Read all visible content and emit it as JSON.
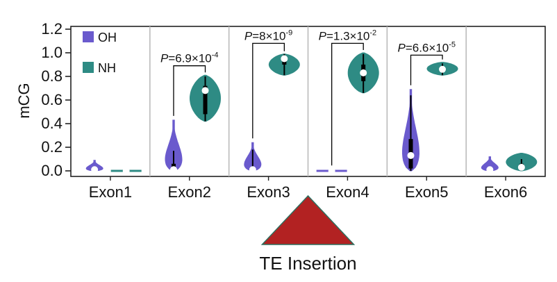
{
  "chart_data": {
    "type": "violin",
    "ylabel": "mCG",
    "ylim": [
      -0.02,
      1.2
    ],
    "yticks": [
      "0.0",
      "0.2",
      "0.4",
      "0.6",
      "0.8",
      "1.0",
      "1.2"
    ],
    "ytick_values": [
      0.0,
      0.2,
      0.4,
      0.6,
      0.8,
      1.0,
      1.2
    ],
    "categories": [
      "Exon1",
      "Exon2",
      "Exon3",
      "Exon4",
      "Exon5",
      "Exon6"
    ],
    "legend": [
      {
        "name": "OH",
        "color": "#6a5acd"
      },
      {
        "name": "NH",
        "color": "#2e8b84"
      }
    ],
    "legend_position": "top-left",
    "series": [
      {
        "name": "OH",
        "color": "#6a5acd",
        "violins": [
          {
            "category": "Exon1",
            "min": 0.0,
            "max": 0.09,
            "median": 0.01
          },
          {
            "category": "Exon2",
            "min": 0.0,
            "max": 0.43,
            "median": 0.01,
            "q1": 0.0,
            "q3": 0.06,
            "whisker_hi": 0.17
          },
          {
            "category": "Exon3",
            "min": 0.0,
            "max": 0.24,
            "median": 0.01,
            "q1": 0.0,
            "q3": 0.03,
            "whisker_hi": 0.18
          },
          {
            "category": "Exon4",
            "min": 0.0,
            "max": 0.01,
            "median": 0.0
          },
          {
            "category": "Exon5",
            "min": 0.0,
            "max": 0.69,
            "median": 0.13,
            "q1": 0.02,
            "q3": 0.27,
            "whisker_hi": 0.64
          },
          {
            "category": "Exon6",
            "min": 0.0,
            "max": 0.12,
            "median": 0.01
          }
        ]
      },
      {
        "name": "NH",
        "color": "#2e8b84",
        "violins": [
          {
            "category": "Exon1",
            "min": 0.0,
            "max": 0.01,
            "median": 0.0
          },
          {
            "category": "Exon2",
            "min": 0.42,
            "max": 0.81,
            "median": 0.68,
            "q1": 0.48,
            "q3": 0.72,
            "whisker_hi": 0.8
          },
          {
            "category": "Exon3",
            "min": 0.81,
            "max": 0.99,
            "median": 0.95,
            "q1": 0.9,
            "q3": 0.97,
            "whisker_hi": 0.99
          },
          {
            "category": "Exon4",
            "min": 0.66,
            "max": 1.0,
            "median": 0.83,
            "q1": 0.76,
            "q3": 0.9,
            "whisker_hi": 0.99
          },
          {
            "category": "Exon5",
            "min": 0.81,
            "max": 0.92,
            "median": 0.86,
            "q1": 0.84,
            "q3": 0.88,
            "whisker_hi": 0.91
          },
          {
            "category": "Exon6",
            "min": 0.0,
            "max": 0.15,
            "median": 0.03,
            "q1": 0.01,
            "q3": 0.06,
            "whisker_hi": 0.1
          }
        ]
      }
    ],
    "comparisons": [
      {
        "category": "Exon2",
        "p_base": "6.9×10",
        "p_exp": "-4",
        "bracket_y": 0.89
      },
      {
        "category": "Exon3",
        "p_base": "8×10",
        "p_exp": "-9",
        "bracket_y": 1.08
      },
      {
        "category": "Exon4",
        "p_base": "1.3×10",
        "p_exp": "-2",
        "bracket_y": 1.08
      },
      {
        "category": "Exon5",
        "p_base": "6.6×10",
        "p_exp": "-5",
        "bracket_y": 0.98
      }
    ],
    "annotation": {
      "label": "TE Insertion",
      "marker": "triangle",
      "color": "#b22222",
      "between": [
        "Exon3",
        "Exon4"
      ]
    }
  }
}
